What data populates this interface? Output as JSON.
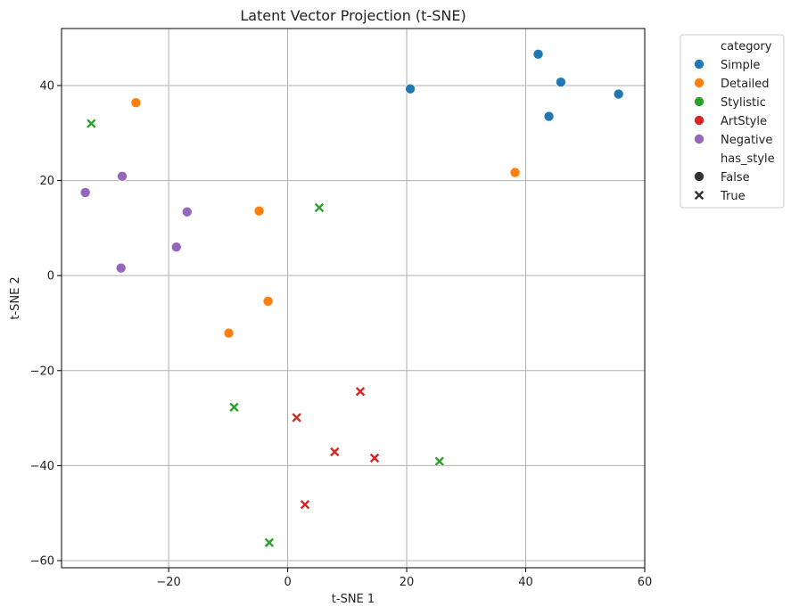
{
  "chart_data": {
    "type": "scatter",
    "title": "Latent Vector Projection (t-SNE)",
    "xlabel": "t-SNE 1",
    "ylabel": "t-SNE 2",
    "xlim": [
      -38,
      60
    ],
    "ylim": [
      -61.5,
      52
    ],
    "xticks": [
      -20,
      0,
      20,
      40,
      60
    ],
    "yticks": [
      -60,
      -40,
      -20,
      0,
      20,
      40
    ],
    "grid": true,
    "legend_position": "outside-top-right",
    "legend": {
      "hue_title": "category",
      "style_title": "has_style",
      "categories": [
        {
          "name": "Simple",
          "color": "#1f77b4"
        },
        {
          "name": "Detailed",
          "color": "#ff7f0e"
        },
        {
          "name": "Stylistic",
          "color": "#2ca02c"
        },
        {
          "name": "ArtStyle",
          "color": "#d62728"
        },
        {
          "name": "Negative",
          "color": "#9467bd"
        }
      ],
      "styles": [
        {
          "name": "False",
          "marker": "circle"
        },
        {
          "name": "True",
          "marker": "x"
        }
      ]
    },
    "points": [
      {
        "x": 42.1,
        "y": 46.6,
        "category": "Simple",
        "has_style": "False"
      },
      {
        "x": 45.9,
        "y": 40.7,
        "category": "Simple",
        "has_style": "False"
      },
      {
        "x": 55.6,
        "y": 38.2,
        "category": "Simple",
        "has_style": "False"
      },
      {
        "x": 43.9,
        "y": 33.5,
        "category": "Simple",
        "has_style": "False"
      },
      {
        "x": 20.6,
        "y": 39.3,
        "category": "Simple",
        "has_style": "False"
      },
      {
        "x": -25.5,
        "y": 36.4,
        "category": "Detailed",
        "has_style": "False"
      },
      {
        "x": 38.2,
        "y": 21.7,
        "category": "Detailed",
        "has_style": "False"
      },
      {
        "x": -4.8,
        "y": 13.6,
        "category": "Detailed",
        "has_style": "False"
      },
      {
        "x": -3.3,
        "y": -5.4,
        "category": "Detailed",
        "has_style": "False"
      },
      {
        "x": -9.9,
        "y": -12.1,
        "category": "Detailed",
        "has_style": "False"
      },
      {
        "x": -33.0,
        "y": 32.0,
        "category": "Stylistic",
        "has_style": "True"
      },
      {
        "x": 5.3,
        "y": 14.3,
        "category": "Stylistic",
        "has_style": "True"
      },
      {
        "x": -9.0,
        "y": -27.7,
        "category": "Stylistic",
        "has_style": "True"
      },
      {
        "x": 25.5,
        "y": -39.1,
        "category": "Stylistic",
        "has_style": "True"
      },
      {
        "x": -3.1,
        "y": -56.2,
        "category": "Stylistic",
        "has_style": "True"
      },
      {
        "x": 12.2,
        "y": -24.4,
        "category": "ArtStyle",
        "has_style": "True"
      },
      {
        "x": 1.5,
        "y": -29.9,
        "category": "ArtStyle",
        "has_style": "True"
      },
      {
        "x": 7.9,
        "y": -37.1,
        "category": "ArtStyle",
        "has_style": "True"
      },
      {
        "x": 14.6,
        "y": -38.4,
        "category": "ArtStyle",
        "has_style": "True"
      },
      {
        "x": 2.9,
        "y": -48.2,
        "category": "ArtStyle",
        "has_style": "True"
      },
      {
        "x": -34.0,
        "y": 17.5,
        "category": "Negative",
        "has_style": "False"
      },
      {
        "x": -27.8,
        "y": 20.9,
        "category": "Negative",
        "has_style": "False"
      },
      {
        "x": -16.9,
        "y": 13.4,
        "category": "Negative",
        "has_style": "False"
      },
      {
        "x": -18.7,
        "y": 6.0,
        "category": "Negative",
        "has_style": "False"
      },
      {
        "x": -28.0,
        "y": 1.6,
        "category": "Negative",
        "has_style": "False"
      }
    ]
  }
}
